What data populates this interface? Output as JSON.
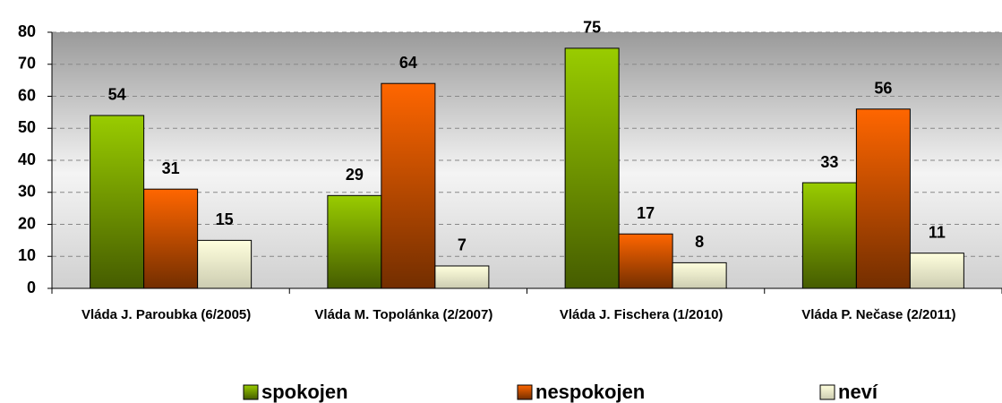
{
  "chart_data": {
    "type": "bar",
    "categories": [
      "Vláda J. Paroubka (6/2005)",
      "Vláda M. Topolánka (2/2007)",
      "Vláda J. Fischera (1/2010)",
      "Vláda P. Nečase (2/2011)"
    ],
    "series": [
      {
        "name": "spokojen",
        "color": "#99cc00",
        "values": [
          54,
          29,
          75,
          33
        ]
      },
      {
        "name": "nespokojen",
        "color": "#ff6600",
        "values": [
          31,
          64,
          17,
          56
        ]
      },
      {
        "name": "neví",
        "color": "#ffffdd",
        "values": [
          15,
          7,
          8,
          11
        ]
      }
    ],
    "ylim": [
      0,
      80
    ],
    "yticks": [
      0,
      10,
      20,
      30,
      40,
      50,
      60,
      70,
      80
    ],
    "grid": true,
    "legend": "bottom"
  }
}
